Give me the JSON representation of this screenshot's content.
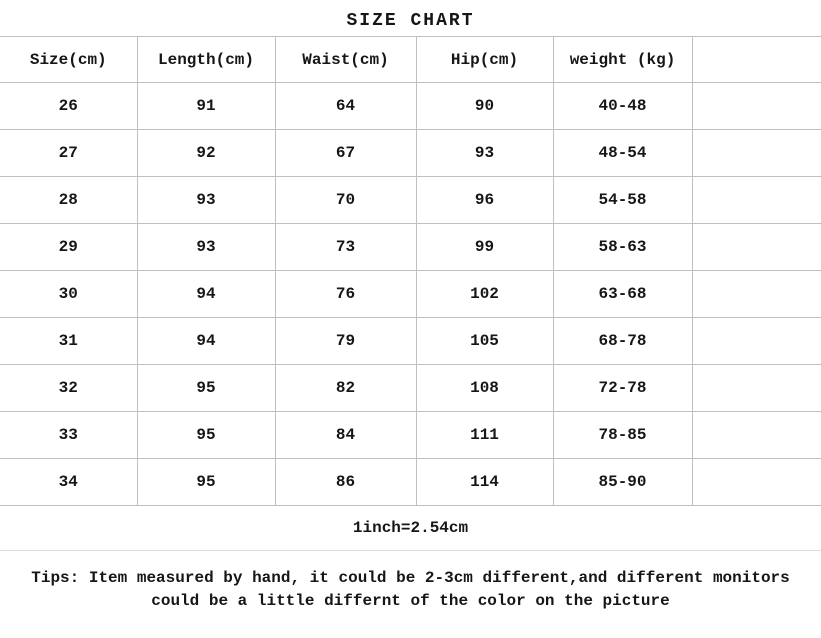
{
  "chart_data": {
    "type": "table",
    "title": "SIZE CHART",
    "columns": [
      "Size(cm)",
      "Length(cm)",
      "Waist(cm)",
      "Hip(cm)",
      "weight (kg)",
      ""
    ],
    "rows": [
      [
        "26",
        "91",
        "64",
        "90",
        "40-48"
      ],
      [
        "27",
        "92",
        "67",
        "93",
        "48-54"
      ],
      [
        "28",
        "93",
        "70",
        "96",
        "54-58"
      ],
      [
        "29",
        "93",
        "73",
        "99",
        "58-63"
      ],
      [
        "30",
        "94",
        "76",
        "102",
        "63-68"
      ],
      [
        "31",
        "94",
        "79",
        "105",
        "68-78"
      ],
      [
        "32",
        "95",
        "82",
        "108",
        "72-78"
      ],
      [
        "33",
        "95",
        "84",
        "111",
        "78-85"
      ],
      [
        "34",
        "95",
        "86",
        "114",
        "85-90"
      ]
    ],
    "conversion_note": "1inch=2.54cm",
    "tips_line1": "Tips: Item measured by hand, it could be 2-3cm different,and different monitors",
    "tips_line2": "could be a little differnt of the color on the picture"
  },
  "colors": {
    "text": "#161616",
    "border": "#bfbfbf",
    "border_light": "#d9ded9",
    "background": "#ffffff"
  }
}
